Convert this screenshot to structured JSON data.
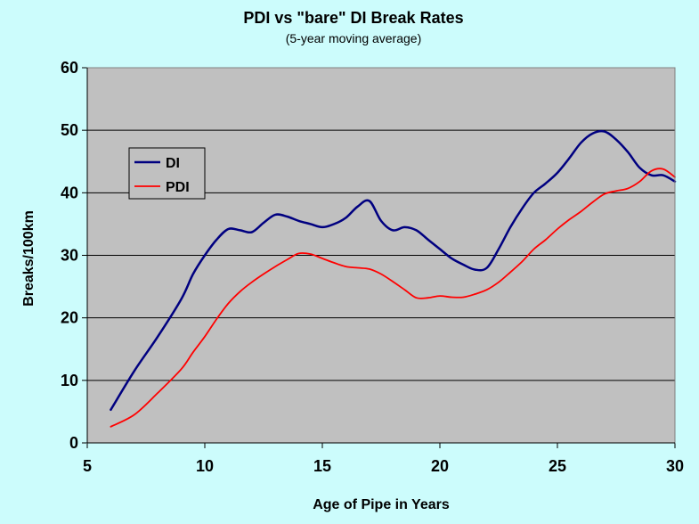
{
  "chart_data": {
    "type": "line",
    "title": "PDI vs \"bare\" DI Break Rates",
    "subtitle": "(5-year moving average)",
    "xlabel": "Age of Pipe in Years",
    "ylabel": "Breaks/100km",
    "xlim": [
      5,
      30
    ],
    "ylim": [
      0,
      60
    ],
    "xticks": [
      "5",
      "10",
      "15",
      "20",
      "25",
      "30"
    ],
    "yticks": [
      "0",
      "10",
      "20",
      "30",
      "40",
      "50",
      "60"
    ],
    "grid": "horizontal",
    "plot_background": "#c0c0c0",
    "page_background": "#ccfcfc",
    "legend": "left",
    "series": [
      {
        "name": "DI",
        "color": "#000080",
        "x": [
          6,
          7,
          8,
          9,
          9.5,
          10,
          10.5,
          11,
          11.5,
          12,
          12.5,
          13,
          13.5,
          14,
          14.5,
          15,
          15.5,
          16,
          16.5,
          17,
          17.5,
          18,
          18.5,
          19,
          19.5,
          20,
          20.5,
          21,
          21.5,
          22,
          22.5,
          23,
          23.5,
          24,
          24.5,
          25,
          25.5,
          26,
          26.5,
          27,
          27.5,
          28,
          28.5,
          29,
          29.5,
          30
        ],
        "y": [
          5.3,
          11.5,
          17.0,
          23.0,
          27.0,
          30.0,
          32.5,
          34.2,
          34.0,
          33.7,
          35.2,
          36.5,
          36.2,
          35.5,
          35.0,
          34.5,
          35.0,
          36.0,
          37.8,
          38.7,
          35.5,
          34.0,
          34.5,
          34.0,
          32.5,
          31.0,
          29.5,
          28.5,
          27.7,
          28.0,
          31.0,
          34.5,
          37.5,
          40.0,
          41.5,
          43.2,
          45.5,
          48.0,
          49.5,
          49.8,
          48.5,
          46.5,
          44.0,
          42.8,
          42.8,
          41.8
        ]
      },
      {
        "name": "PDI",
        "color": "#ff0000",
        "x": [
          6,
          7,
          8,
          9,
          9.5,
          10,
          10.5,
          11,
          11.5,
          12,
          12.5,
          13,
          13.5,
          14,
          14.5,
          15,
          15.5,
          16,
          16.5,
          17,
          17.5,
          18,
          18.5,
          19,
          19.5,
          20,
          20.5,
          21,
          21.5,
          22,
          22.5,
          23,
          23.5,
          24,
          24.5,
          25,
          25.5,
          26,
          26.5,
          27,
          27.5,
          28,
          28.5,
          29,
          29.5,
          30
        ],
        "y": [
          2.6,
          4.5,
          8.0,
          11.8,
          14.5,
          17.0,
          19.8,
          22.3,
          24.2,
          25.7,
          27.0,
          28.2,
          29.3,
          30.3,
          30.2,
          29.5,
          28.8,
          28.2,
          28.0,
          27.8,
          27.0,
          25.8,
          24.5,
          23.2,
          23.2,
          23.5,
          23.3,
          23.3,
          23.8,
          24.5,
          25.7,
          27.3,
          29.0,
          31.0,
          32.5,
          34.2,
          35.7,
          37.0,
          38.5,
          39.8,
          40.3,
          40.7,
          41.8,
          43.5,
          43.8,
          42.5
        ]
      }
    ]
  }
}
